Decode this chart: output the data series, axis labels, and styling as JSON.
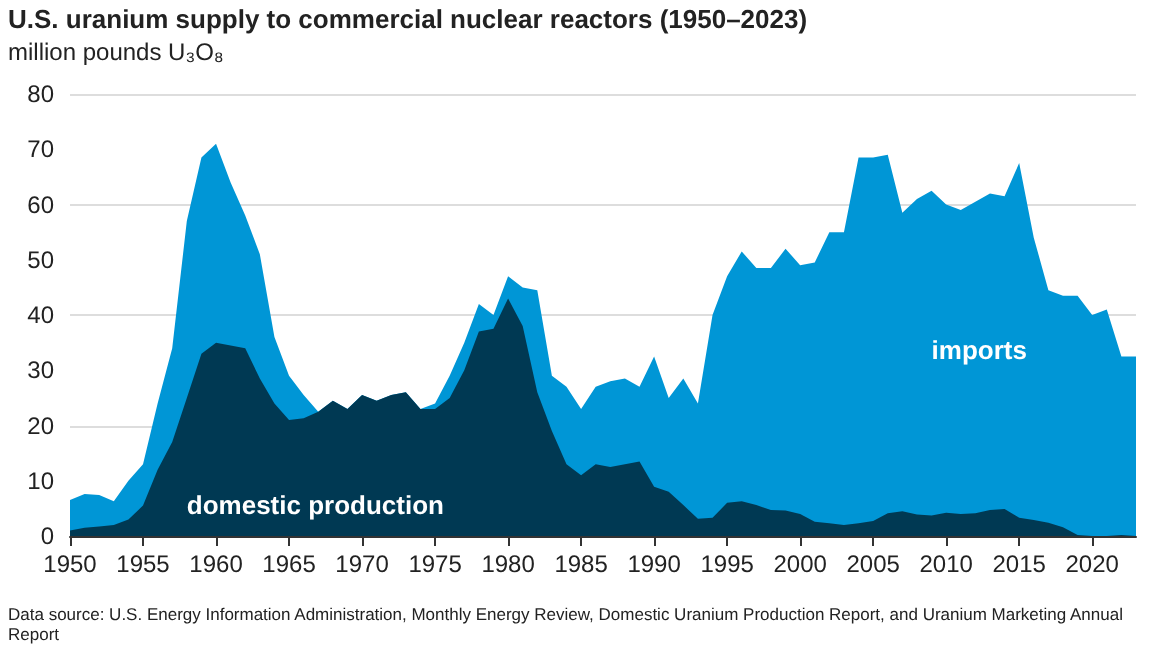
{
  "chart_data": {
    "type": "area",
    "title": "U.S. uranium supply to commercial nuclear reactors (1950–2023)",
    "subtitle": "million pounds U₃O₈",
    "annotations": [
      "Data source: U.S. Energy Information Administration, Monthly Energy Review, Domestic Uranium Production Report, and Uranium Marketing Annual Report"
    ],
    "x": [
      1950,
      1951,
      1952,
      1953,
      1954,
      1955,
      1956,
      1957,
      1958,
      1959,
      1960,
      1961,
      1962,
      1963,
      1964,
      1965,
      1966,
      1967,
      1968,
      1969,
      1970,
      1971,
      1972,
      1973,
      1974,
      1975,
      1976,
      1977,
      1978,
      1979,
      1980,
      1981,
      1982,
      1983,
      1984,
      1985,
      1986,
      1987,
      1988,
      1989,
      1990,
      1991,
      1992,
      1993,
      1994,
      1995,
      1996,
      1997,
      1998,
      1999,
      2000,
      2001,
      2002,
      2003,
      2004,
      2005,
      2006,
      2007,
      2008,
      2009,
      2010,
      2011,
      2012,
      2013,
      2014,
      2015,
      2016,
      2017,
      2018,
      2019,
      2020,
      2021,
      2022,
      2023
    ],
    "stacked": true,
    "series": [
      {
        "name": "domestic production",
        "color": "#003953",
        "values": [
          1,
          1.5,
          1.7,
          2,
          3,
          5.5,
          12,
          17,
          25,
          33,
          35,
          34.5,
          34,
          28.5,
          24,
          21,
          21.3,
          22.5,
          24.5,
          23,
          25.5,
          24.5,
          25.5,
          26,
          23,
          23,
          25,
          30,
          37,
          37.5,
          43,
          38,
          26,
          19,
          13,
          11,
          13,
          12.5,
          13,
          13.5,
          8.9,
          8,
          5.6,
          3.1,
          3.3,
          6,
          6.3,
          5.6,
          4.7,
          4.6,
          4,
          2.6,
          2.3,
          2,
          2.3,
          2.7,
          4.1,
          4.5,
          3.9,
          3.7,
          4.2,
          4,
          4.1,
          4.7,
          4.9,
          3.3,
          2.9,
          2.4,
          1.6,
          0.2,
          0,
          0,
          0.2,
          0
        ]
      },
      {
        "name": "imports",
        "color": "#0096d6",
        "values": [
          5.5,
          6.1,
          5.7,
          4.3,
          7,
          7.5,
          12,
          17,
          32,
          35.5,
          36,
          29.5,
          24,
          22.5,
          12,
          8,
          4.2,
          0,
          0,
          0,
          0,
          0,
          0,
          0,
          0,
          1,
          4,
          5,
          5,
          2.5,
          4,
          7,
          18.5,
          10,
          14,
          12,
          14,
          15.5,
          15.5,
          13.5,
          23.6,
          17,
          22.9,
          20.9,
          36.7,
          41,
          45.2,
          42.9,
          43.8,
          47.4,
          45,
          46.9,
          52.7,
          53,
          66.2,
          65.8,
          64.9,
          54,
          57.1,
          58.8,
          55.8,
          55,
          56.4,
          57.3,
          56.6,
          64.2,
          51.1,
          42.1,
          41.9,
          43.3,
          40,
          41,
          32.3,
          32.5
        ]
      }
    ],
    "xlim": [
      1950,
      2023
    ],
    "xticks": [
      1950,
      1955,
      1960,
      1965,
      1970,
      1975,
      1980,
      1985,
      1990,
      1995,
      2000,
      2005,
      2010,
      2015,
      2020
    ],
    "ylim": [
      0,
      80
    ],
    "yticks": [
      0,
      10,
      20,
      30,
      40,
      50,
      60,
      70,
      80
    ],
    "grid": "y",
    "legend": false
  }
}
